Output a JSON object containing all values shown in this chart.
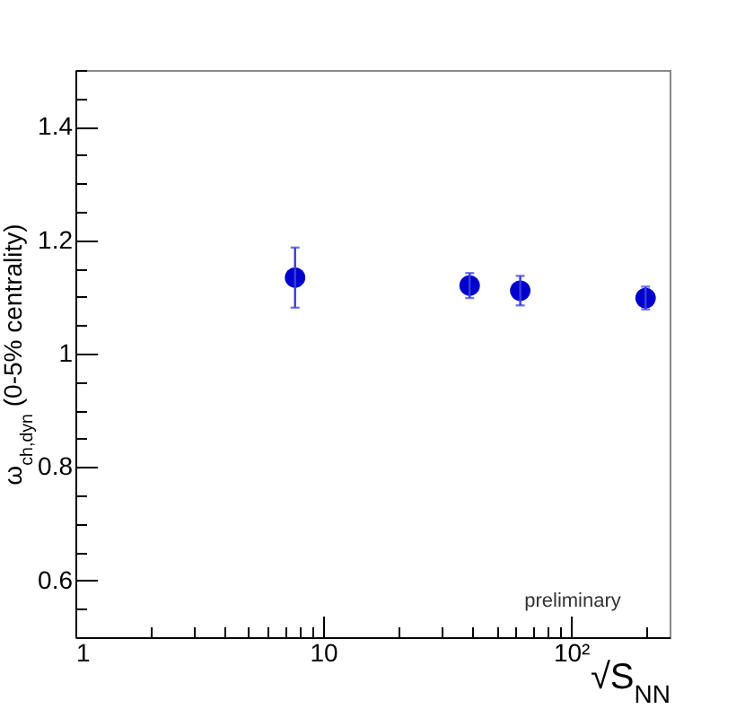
{
  "chart_data": {
    "type": "scatter",
    "xlabel": "√S$_{NN}$",
    "ylabel": "ω$_{ch,dyn}$ (0-5% centrality)",
    "x": [
      7.7,
      39,
      62.4,
      200
    ],
    "series": [
      {
        "color": "#0000cc",
        "values": [
          1.134,
          1.12,
          1.111,
          1.098
        ],
        "errors": [
          0.053,
          0.022,
          0.026,
          0.02
        ]
      }
    ],
    "log": "x",
    "marker": "circle",
    "grid": false,
    "xlim": [
      1,
      250
    ],
    "xticks": [
      1,
      {
        "value": 2,
        "label": null
      },
      {
        "value": 3,
        "label": null
      },
      {
        "value": 4,
        "label": null
      },
      {
        "value": 5,
        "label": null
      },
      {
        "value": 6,
        "label": null
      },
      {
        "value": 7,
        "label": null
      },
      {
        "value": 8,
        "label": null
      },
      {
        "value": 9,
        "label": null
      },
      10,
      {
        "value": 20,
        "label": null
      },
      {
        "value": 30,
        "label": null
      },
      {
        "value": 40,
        "label": null
      },
      {
        "value": 50,
        "label": null
      },
      {
        "value": 60,
        "label": null
      },
      {
        "value": 70,
        "label": null
      },
      {
        "value": 80,
        "label": null
      },
      {
        "value": 90,
        "label": null
      },
      {
        "value": 100,
        "label": "10²"
      },
      {
        "value": 200,
        "label": null
      }
    ],
    "ylim": [
      0.5,
      1.5
    ],
    "yticks": [
      {
        "value": 0.5,
        "label": null
      },
      {
        "value": 0.55,
        "label": null
      },
      0.6,
      {
        "value": 0.65,
        "label": null
      },
      {
        "value": 0.7,
        "label": null
      },
      {
        "value": 0.75,
        "label": null
      },
      0.8,
      {
        "value": 0.85,
        "label": null
      },
      {
        "value": 0.9,
        "label": null
      },
      {
        "value": 0.95,
        "label": null
      },
      1,
      {
        "value": 1.05,
        "label": null
      },
      {
        "value": 1.1,
        "label": null
      },
      {
        "value": 1.15,
        "label": null
      },
      1.2,
      {
        "value": 1.25,
        "label": null
      },
      {
        "value": 1.3,
        "label": null
      },
      {
        "value": 1.35,
        "label": null
      },
      1.4,
      {
        "value": 1.45,
        "label": null
      },
      {
        "value": 1.5,
        "label": null
      }
    ],
    "annotations": [
      "preliminary"
    ]
  }
}
